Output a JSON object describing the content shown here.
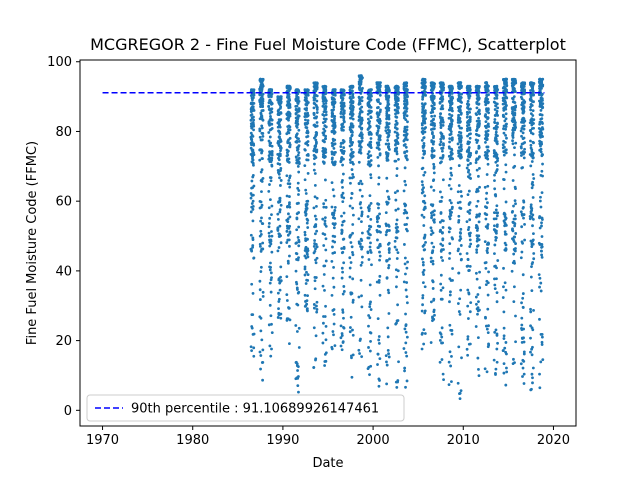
{
  "chart_data": {
    "type": "scatter",
    "title": "MCGREGOR 2 - Fine Fuel Moisture Code (FFMC), Scatterplot",
    "xlabel": "Date",
    "ylabel": "Fine Fuel Moisture Code (FFMC)",
    "xlim": [
      1967.5,
      2022.5
    ],
    "ylim": [
      -4.5,
      100.5
    ],
    "xticks": [
      1970,
      1980,
      1990,
      2000,
      2010,
      2020
    ],
    "xtick_labels": [
      "1970",
      "1980",
      "1990",
      "2000",
      "2010",
      "2020"
    ],
    "yticks": [
      0,
      20,
      40,
      60,
      80,
      100
    ],
    "ytick_labels": [
      "0",
      "20",
      "40",
      "60",
      "80",
      "100"
    ],
    "grid": false,
    "legend_position": "lower-left",
    "colors": {
      "points": "#1f77b4",
      "percentile_line": "#0000ff"
    },
    "reference_line": {
      "name": "90th percentile : 91.10689926147461",
      "y": 91.10689926147461,
      "x_start": 1970,
      "x_end": 2019
    },
    "series": [
      {
        "marker": "dot",
        "seasons": [
          {
            "year": 1986,
            "start": 1986.45,
            "end": 1986.8,
            "min": 13,
            "max": 92
          },
          {
            "year": 1987,
            "start": 1987.42,
            "end": 1987.82,
            "min": 8,
            "max": 95
          },
          {
            "year": 1988,
            "start": 1988.42,
            "end": 1988.82,
            "min": 14,
            "max": 92
          },
          {
            "year": 1989,
            "start": 1989.42,
            "end": 1989.82,
            "min": 25,
            "max": 90
          },
          {
            "year": 1990,
            "start": 1990.42,
            "end": 1990.82,
            "min": 18,
            "max": 93
          },
          {
            "year": 1991,
            "start": 1991.42,
            "end": 1991.82,
            "min": 5,
            "max": 92
          },
          {
            "year": 1992,
            "start": 1992.42,
            "end": 1992.82,
            "min": 28,
            "max": 92
          },
          {
            "year": 1993,
            "start": 1993.42,
            "end": 1993.82,
            "min": 12,
            "max": 94
          },
          {
            "year": 1994,
            "start": 1994.42,
            "end": 1994.82,
            "min": 10,
            "max": 93
          },
          {
            "year": 1995,
            "start": 1995.42,
            "end": 1995.82,
            "min": 16,
            "max": 92
          },
          {
            "year": 1996,
            "start": 1996.42,
            "end": 1996.82,
            "min": 14,
            "max": 92
          },
          {
            "year": 1997,
            "start": 1997.42,
            "end": 1997.82,
            "min": 6,
            "max": 93
          },
          {
            "year": 1998,
            "start": 1998.42,
            "end": 1998.82,
            "min": 15,
            "max": 96
          },
          {
            "year": 1999,
            "start": 1999.42,
            "end": 1999.82,
            "min": 10,
            "max": 92
          },
          {
            "year": 2000,
            "start": 2000.42,
            "end": 2000.82,
            "min": 4,
            "max": 94
          },
          {
            "year": 2001,
            "start": 2001.42,
            "end": 2001.82,
            "min": 6,
            "max": 93
          },
          {
            "year": 2002,
            "start": 2002.42,
            "end": 2002.82,
            "min": 6,
            "max": 93
          },
          {
            "year": 2003,
            "start": 2003.42,
            "end": 2003.82,
            "min": 5,
            "max": 94
          },
          {
            "year": 2005,
            "start": 2005.42,
            "end": 2005.82,
            "min": 12,
            "max": 95
          },
          {
            "year": 2006,
            "start": 2006.42,
            "end": 2006.82,
            "min": 17,
            "max": 94
          },
          {
            "year": 2007,
            "start": 2007.42,
            "end": 2007.82,
            "min": 8,
            "max": 94
          },
          {
            "year": 2008,
            "start": 2008.42,
            "end": 2008.82,
            "min": 6,
            "max": 93
          },
          {
            "year": 2009,
            "start": 2009.42,
            "end": 2009.82,
            "min": 3,
            "max": 94
          },
          {
            "year": 2010,
            "start": 2010.42,
            "end": 2010.82,
            "min": 12,
            "max": 93
          },
          {
            "year": 2011,
            "start": 2011.42,
            "end": 2011.82,
            "min": 8,
            "max": 93
          },
          {
            "year": 2012,
            "start": 2012.42,
            "end": 2012.82,
            "min": 5,
            "max": 94
          },
          {
            "year": 2013,
            "start": 2013.42,
            "end": 2013.82,
            "min": 10,
            "max": 93
          },
          {
            "year": 2014,
            "start": 2014.42,
            "end": 2014.82,
            "min": 6,
            "max": 95
          },
          {
            "year": 2015,
            "start": 2015.42,
            "end": 2015.82,
            "min": 12,
            "max": 95
          },
          {
            "year": 2016,
            "start": 2016.42,
            "end": 2016.82,
            "min": 6,
            "max": 94
          },
          {
            "year": 2017,
            "start": 2017.42,
            "end": 2017.82,
            "min": 5,
            "max": 94
          },
          {
            "year": 2018,
            "start": 2018.42,
            "end": 2018.82,
            "min": 3,
            "max": 95
          }
        ]
      }
    ]
  }
}
